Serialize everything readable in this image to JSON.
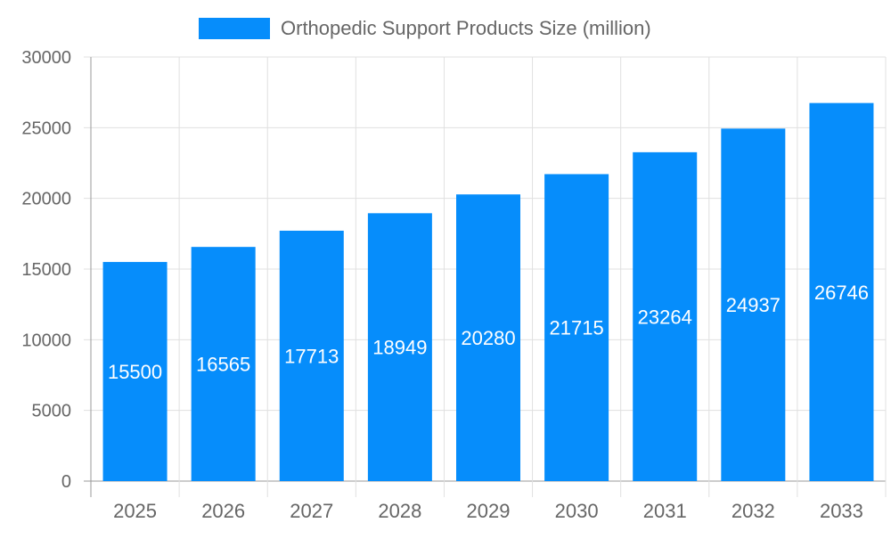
{
  "chart_data": {
    "type": "bar",
    "categories": [
      "2025",
      "2026",
      "2027",
      "2028",
      "2029",
      "2030",
      "2031",
      "2032",
      "2033"
    ],
    "series": [
      {
        "name": "Orthopedic Support Products Size (million)",
        "values": [
          15500,
          16565,
          17713,
          18949,
          20280,
          21715,
          23264,
          24937,
          26746
        ]
      }
    ],
    "ylim": [
      0,
      30000
    ],
    "yticks": [
      0,
      5000,
      10000,
      15000,
      20000,
      25000,
      30000
    ],
    "grid": true,
    "legend": "top",
    "data_labels": true,
    "colors": {
      "bar": "#068dfb",
      "text": "#666666",
      "grid": "#e0e0e0",
      "label": "#ffffff"
    }
  }
}
